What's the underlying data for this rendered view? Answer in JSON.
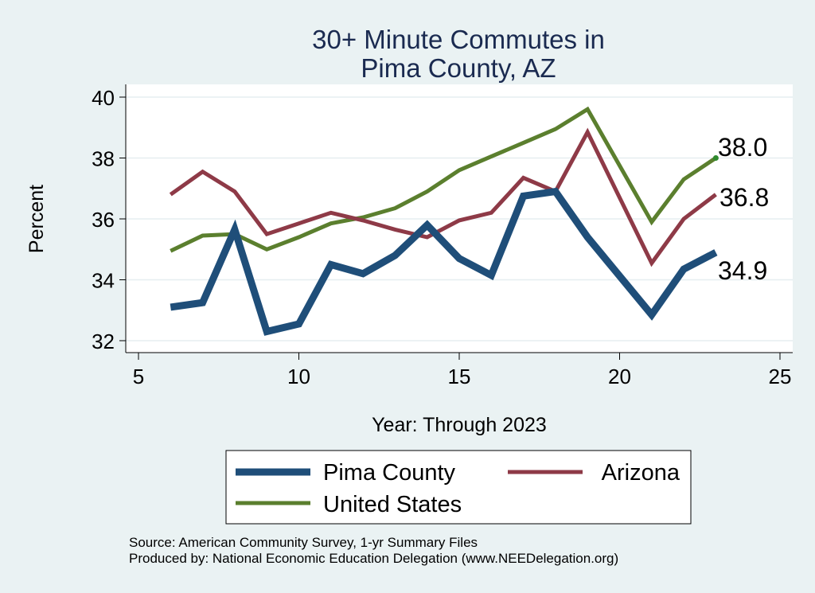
{
  "chart_data": {
    "type": "line",
    "title_lines": [
      "30+ Minute Commutes in",
      "Pima County, AZ"
    ],
    "xlabel": "Year: Through 2023",
    "ylabel": "Percent",
    "xlim": [
      5,
      25
    ],
    "ylim": [
      32,
      40
    ],
    "xticks": [
      5,
      10,
      15,
      20,
      25
    ],
    "yticks": [
      32,
      34,
      36,
      38,
      40
    ],
    "grid": true,
    "legend_position": "bottom",
    "series": [
      {
        "name": "Pima County",
        "key": "pima",
        "color": "#1f4e79",
        "x": [
          6,
          7,
          8,
          9,
          10,
          11,
          12,
          13,
          14,
          15,
          16,
          17,
          18,
          19,
          21,
          22,
          23
        ],
        "values": [
          33.1,
          33.25,
          35.65,
          32.3,
          32.55,
          34.5,
          34.2,
          34.8,
          35.8,
          34.7,
          34.15,
          36.75,
          36.9,
          35.4,
          32.85,
          34.35,
          34.9
        ],
        "end_label": "34.9"
      },
      {
        "name": "Arizona",
        "key": "arizona",
        "color": "#8e3a47",
        "x": [
          6,
          7,
          8,
          9,
          10,
          11,
          12,
          13,
          14,
          15,
          16,
          17,
          18,
          19,
          21,
          22,
          23
        ],
        "values": [
          36.8,
          37.55,
          36.9,
          35.5,
          35.85,
          36.2,
          35.95,
          35.65,
          35.4,
          35.95,
          36.2,
          37.35,
          36.9,
          38.85,
          34.55,
          36.0,
          36.8
        ],
        "end_label": "36.8"
      },
      {
        "name": "United States",
        "key": "us",
        "color": "#5b7f2e",
        "x": [
          6,
          7,
          8,
          9,
          10,
          11,
          12,
          13,
          14,
          15,
          16,
          17,
          18,
          19,
          21,
          22,
          23
        ],
        "values": [
          34.95,
          35.45,
          35.5,
          35.0,
          35.4,
          35.85,
          36.05,
          36.35,
          36.9,
          37.6,
          38.05,
          38.5,
          38.95,
          39.6,
          35.9,
          37.3,
          38.0
        ],
        "end_label": "38.0"
      }
    ],
    "source_lines": [
      "Source: American Community Survey, 1-yr Summary Files",
      "Produced by: National Economic Education Delegation (www.NEEDelegation.org)"
    ]
  }
}
